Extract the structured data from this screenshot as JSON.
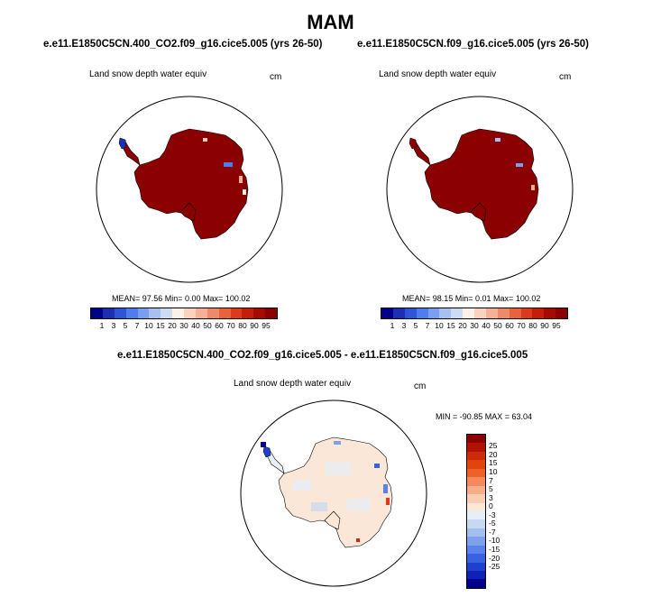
{
  "title": "MAM",
  "panels": [
    {
      "title": "e.e11.E1850C5CN.400_CO2.f09_g16.cice5.005 (yrs 26-50)",
      "variable": "Land snow depth water equiv",
      "units": "cm",
      "stats": "MEAN=  97.56  Min=   0.00  Max= 100.02"
    },
    {
      "title": "e.e11.E1850C5CN.f09_g16.cice5.005 (yrs 26-50)",
      "variable": "Land snow depth water equiv",
      "units": "cm",
      "stats": "MEAN=  98.15  Min=   0.01  Max= 100.02"
    }
  ],
  "abs_colorbar": {
    "colors": [
      "#00008b",
      "#1c2fb0",
      "#2f55d6",
      "#4f7df0",
      "#7a9ef0",
      "#a6c0f2",
      "#cddcf5",
      "#fbf1e6",
      "#fbd3bd",
      "#f6b096",
      "#ef8a68",
      "#e8623e",
      "#db3b1c",
      "#c41d09",
      "#a60b00",
      "#8b0000"
    ],
    "labels": [
      "1",
      "3",
      "5",
      "7",
      "10",
      "15",
      "20",
      "30",
      "40",
      "50",
      "60",
      "70",
      "80",
      "90",
      "95"
    ]
  },
  "diff": {
    "title": "e.e11.E1850C5CN.400_CO2.f09_g16.cice5.005 - e.e11.E1850C5CN.f09_g16.cice5.005",
    "variable": "Land snow depth water equiv",
    "units": "cm",
    "minmax": "MIN = -90.85 MAX =  63.04"
  },
  "diff_colorbar": {
    "colors": [
      "#8b0000",
      "#b01204",
      "#cc2a08",
      "#e2440f",
      "#f0602a",
      "#f58a5c",
      "#f7ad88",
      "#f9ceb4",
      "#fbe7d7",
      "#e6eef8",
      "#c6d8f2",
      "#a2bff0",
      "#7ea1ee",
      "#5a82e8",
      "#3a62e0",
      "#1f3fcf",
      "#0d22b5",
      "#00008b"
    ],
    "labels": [
      "25",
      "20",
      "15",
      "10",
      "7",
      "5",
      "3",
      "0",
      "-3",
      "-5",
      "-7",
      "-10",
      "-15",
      "-20",
      "-25"
    ]
  }
}
